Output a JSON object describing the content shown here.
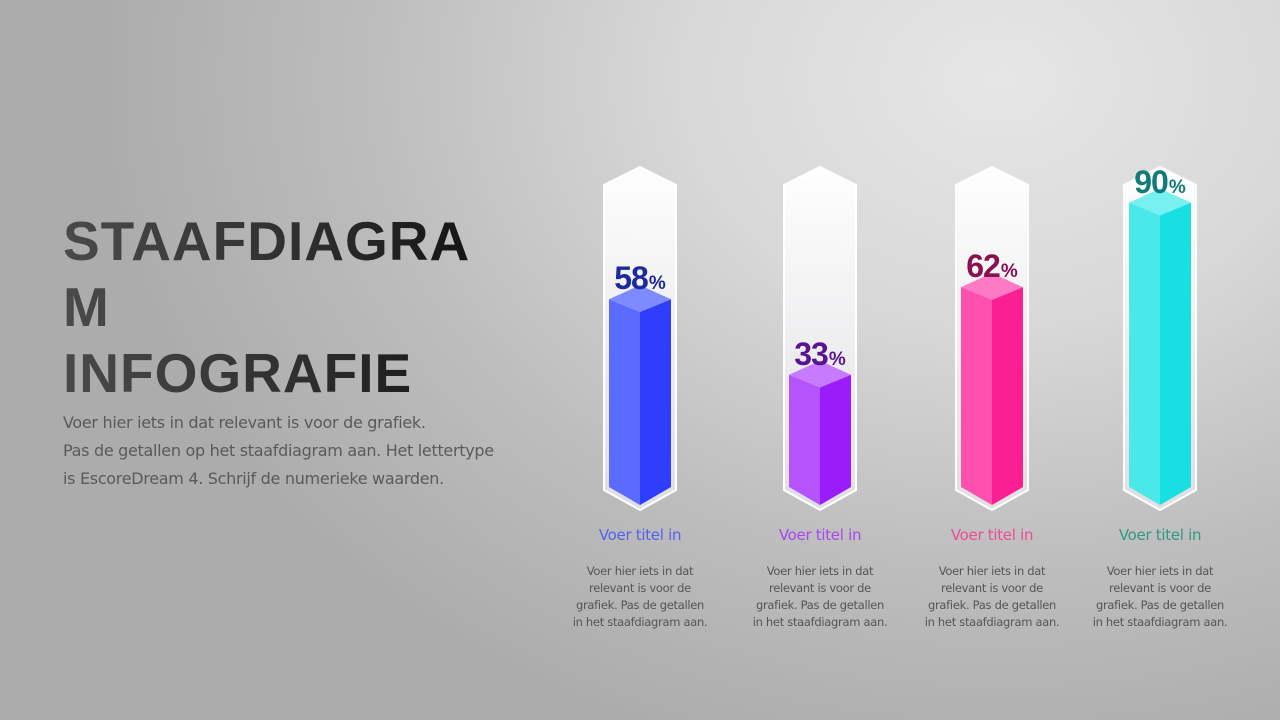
{
  "title": {
    "lines": [
      "STAAFDIAGRA",
      "M",
      "INFOGRAFIE"
    ]
  },
  "intro": {
    "lines": [
      "Voer hier iets in dat relevant is voor de grafiek.",
      "Pas de getallen op het staafdiagram aan. Het lettertype",
      "is EscoreDream 4. Schrijf de numerieke waarden."
    ]
  },
  "bars": [
    {
      "value": "58",
      "sign": "%",
      "title": "Voer titel in",
      "desc": [
        "Voer hier iets in dat",
        "relevant is voor de",
        "grafiek. Pas de getallen",
        "in het staafdiagram aan."
      ],
      "colors": {
        "left": "#5b6bff",
        "right": "#2f3dfc",
        "top": "#7e8bff",
        "label": "#1c2a9c",
        "title": "#5560f0"
      }
    },
    {
      "value": "33",
      "sign": "%",
      "title": "Voer titel in",
      "desc": [
        "Voer hier iets in dat",
        "relevant is voor de",
        "grafiek. Pas de getallen",
        "in het staafdiagram aan."
      ],
      "colors": {
        "left": "#b553ff",
        "right": "#9b1cfb",
        "top": "#c77cff",
        "label": "#5a1492",
        "title": "#a647f0"
      }
    },
    {
      "value": "62",
      "sign": "%",
      "title": "Voer titel in",
      "desc": [
        "Voer hier iets in dat",
        "relevant is voor de",
        "grafiek. Pas de getallen",
        "in het staafdiagram aan."
      ],
      "colors": {
        "left": "#ff4faf",
        "right": "#fb1f94",
        "top": "#ff7ac4",
        "label": "#8a1050",
        "title": "#ee4c95"
      }
    },
    {
      "value": "90",
      "sign": "%",
      "title": "Voer titel in",
      "desc": [
        "Voer hier iets in dat",
        "relevant is voor de",
        "grafiek. Pas de getallen",
        "in het staafdiagram aan."
      ],
      "colors": {
        "left": "#4be8ea",
        "right": "#1adfe2",
        "top": "#78f0f1",
        "label": "#127a78",
        "title": "#2e9a82"
      }
    }
  ],
  "chart_data": {
    "type": "bar",
    "title": "STAAFDIAGRAM INFOGRAFIE",
    "categories": [
      "Voer titel in",
      "Voer titel in",
      "Voer titel in",
      "Voer titel in"
    ],
    "values": [
      58,
      33,
      62,
      90
    ],
    "unit": "%",
    "ylim": [
      0,
      100
    ],
    "xlabel": "",
    "ylabel": "",
    "grid": false,
    "legend": "none",
    "series_colors": [
      "#3f4efc",
      "#a52afc",
      "#fc2f9d",
      "#2ae3e6"
    ]
  }
}
